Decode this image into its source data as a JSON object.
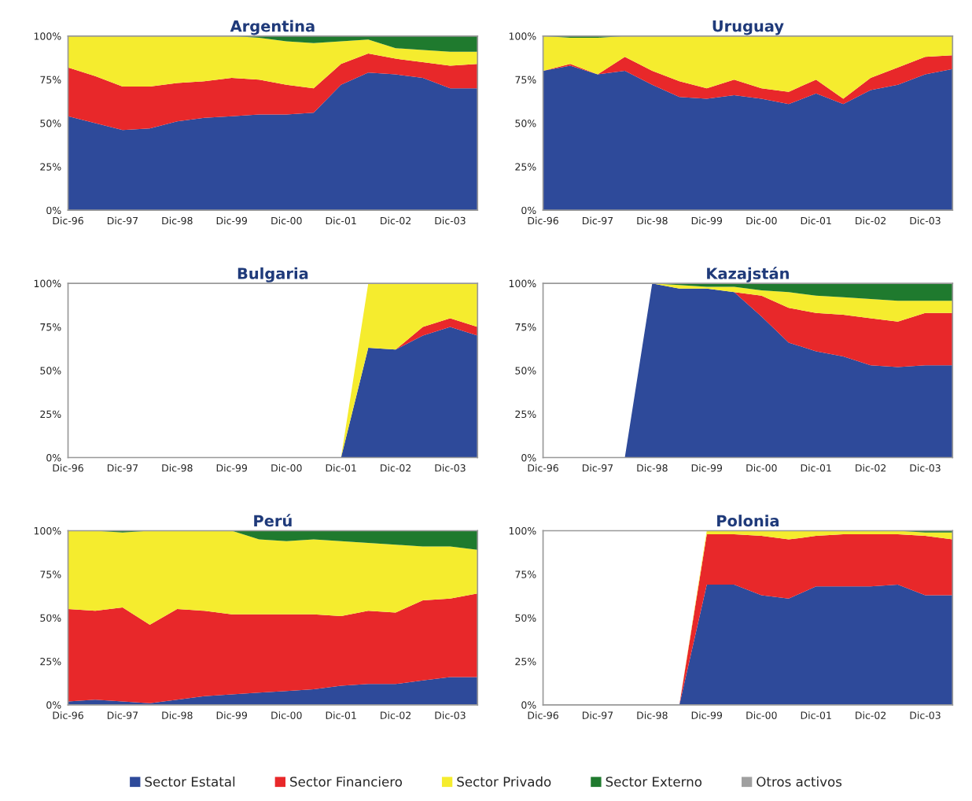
{
  "chart_data": [
    {
      "type": "area",
      "stacked": true,
      "title": "Argentina",
      "x": [
        "1996-12",
        "1997-06",
        "1997-12",
        "1998-06",
        "1998-12",
        "1999-06",
        "1999-12",
        "2000-06",
        "2000-12",
        "2001-06",
        "2001-12",
        "2002-06",
        "2002-12",
        "2003-06",
        "2003-12",
        "2004-06"
      ],
      "xlim": [
        "1996-12",
        "2004-06"
      ],
      "xticks": [
        {
          "value": "1996-12",
          "label": "Dic-96"
        },
        {
          "value": "1997-12",
          "label": "Dic-97"
        },
        {
          "value": "1998-12",
          "label": "Dic-98"
        },
        {
          "value": "1999-12",
          "label": "Dic-99"
        },
        {
          "value": "2000-12",
          "label": "Dic-00"
        },
        {
          "value": "2001-12",
          "label": "Dic-01"
        },
        {
          "value": "2002-12",
          "label": "Dic-02"
        },
        {
          "value": "2003-12",
          "label": "Dic-03"
        }
      ],
      "ylim": [
        0,
        100
      ],
      "yticks": [
        {
          "value": 0,
          "label": "0%"
        },
        {
          "value": 25,
          "label": "25%"
        },
        {
          "value": 50,
          "label": "50%"
        },
        {
          "value": 75,
          "label": "75%"
        },
        {
          "value": 100,
          "label": "100%"
        }
      ],
      "series": [
        {
          "color": "#2e4a9a",
          "values": [
            54,
            50,
            46,
            47,
            51,
            53,
            54,
            55,
            55,
            56,
            72,
            79,
            78,
            76,
            70,
            70
          ]
        },
        {
          "color": "#e8282a",
          "values": [
            28,
            27,
            25,
            24,
            22,
            21,
            22,
            20,
            17,
            14,
            12,
            11,
            9,
            9,
            13,
            14
          ]
        },
        {
          "color": "#f5ec2e",
          "values": [
            18,
            23,
            29,
            29,
            27,
            26,
            24,
            24,
            25,
            26,
            13,
            8,
            6,
            7,
            8,
            7
          ]
        },
        {
          "color": "#1f7a2e",
          "values": [
            0,
            0,
            0,
            0,
            0,
            0,
            0,
            1,
            3,
            4,
            3,
            2,
            7,
            8,
            9,
            9
          ]
        }
      ]
    },
    {
      "type": "area",
      "stacked": true,
      "title": "Uruguay",
      "x": [
        "1996-12",
        "1997-06",
        "1997-12",
        "1998-06",
        "1998-12",
        "1999-06",
        "1999-12",
        "2000-06",
        "2000-12",
        "2001-06",
        "2001-12",
        "2002-06",
        "2002-12",
        "2003-06",
        "2003-12",
        "2004-06"
      ],
      "xlim": [
        "1996-12",
        "2004-06"
      ],
      "xticks": [
        {
          "value": "1996-12",
          "label": "Dic-96"
        },
        {
          "value": "1997-12",
          "label": "Dic-97"
        },
        {
          "value": "1998-12",
          "label": "Dic-98"
        },
        {
          "value": "1999-12",
          "label": "Dic-99"
        },
        {
          "value": "2000-12",
          "label": "Dic-00"
        },
        {
          "value": "2001-12",
          "label": "Dic-01"
        },
        {
          "value": "2002-12",
          "label": "Dic-02"
        },
        {
          "value": "2003-12",
          "label": "Dic-03"
        }
      ],
      "ylim": [
        0,
        100
      ],
      "yticks": [
        {
          "value": 0,
          "label": "0%"
        },
        {
          "value": 25,
          "label": "25%"
        },
        {
          "value": 50,
          "label": "50%"
        },
        {
          "value": 75,
          "label": "75%"
        },
        {
          "value": 100,
          "label": "100%"
        }
      ],
      "series": [
        {
          "color": "#2e4a9a",
          "values": [
            80,
            83,
            78,
            80,
            72,
            65,
            64,
            66,
            64,
            61,
            67,
            61,
            69,
            72,
            78,
            81
          ]
        },
        {
          "color": "#e8282a",
          "values": [
            0,
            1,
            0,
            8,
            8,
            9,
            6,
            9,
            6,
            7,
            8,
            3,
            7,
            10,
            10,
            8
          ]
        },
        {
          "color": "#f5ec2e",
          "values": [
            20,
            15,
            21,
            12,
            20,
            26,
            30,
            25,
            30,
            32,
            25,
            36,
            24,
            18,
            12,
            11
          ]
        },
        {
          "color": "#1f7a2e",
          "values": [
            0,
            1,
            1,
            0,
            0,
            0,
            0,
            0,
            0,
            0,
            0,
            0,
            0,
            0,
            0,
            0
          ]
        }
      ]
    },
    {
      "type": "area",
      "stacked": true,
      "title": "Bulgaria",
      "x": [
        "1996-12",
        "1997-06",
        "1997-12",
        "1998-06",
        "1998-12",
        "1999-06",
        "1999-12",
        "2000-06",
        "2000-12",
        "2001-06",
        "2001-12",
        "2002-06",
        "2002-12",
        "2003-06",
        "2003-12",
        "2004-06"
      ],
      "xlim": [
        "1996-12",
        "2004-06"
      ],
      "xticks": [
        {
          "value": "1996-12",
          "label": "Dic-96"
        },
        {
          "value": "1997-12",
          "label": "Dic-97"
        },
        {
          "value": "1998-12",
          "label": "Dic-98"
        },
        {
          "value": "1999-12",
          "label": "Dic-99"
        },
        {
          "value": "2000-12",
          "label": "Dic-00"
        },
        {
          "value": "2001-12",
          "label": "Dic-01"
        },
        {
          "value": "2002-12",
          "label": "Dic-02"
        },
        {
          "value": "2003-12",
          "label": "Dic-03"
        }
      ],
      "ylim": [
        0,
        100
      ],
      "yticks": [
        {
          "value": 0,
          "label": "0%"
        },
        {
          "value": 25,
          "label": "25%"
        },
        {
          "value": 50,
          "label": "50%"
        },
        {
          "value": 75,
          "label": "75%"
        },
        {
          "value": 100,
          "label": "100%"
        }
      ],
      "series": [
        {
          "color": "#2e4a9a",
          "values": [
            0,
            0,
            0,
            0,
            0,
            0,
            0,
            0,
            0,
            0,
            0,
            63,
            62,
            70,
            75,
            70
          ]
        },
        {
          "color": "#e8282a",
          "values": [
            null,
            null,
            null,
            null,
            null,
            null,
            null,
            null,
            null,
            null,
            null,
            null,
            0,
            5,
            5,
            5
          ]
        },
        {
          "color": "#f5ec2e",
          "values": [
            null,
            null,
            null,
            null,
            null,
            null,
            null,
            null,
            null,
            null,
            0,
            37,
            38,
            25,
            20,
            25
          ]
        }
      ]
    },
    {
      "type": "area",
      "stacked": true,
      "title": "Kazajstán",
      "x": [
        "1996-12",
        "1997-06",
        "1997-12",
        "1998-06",
        "1998-12",
        "1999-06",
        "1999-12",
        "2000-06",
        "2000-12",
        "2001-06",
        "2001-12",
        "2002-06",
        "2002-12",
        "2003-06",
        "2003-12",
        "2004-06"
      ],
      "xlim": [
        "1996-12",
        "2004-06"
      ],
      "xticks": [
        {
          "value": "1996-12",
          "label": "Dic-96"
        },
        {
          "value": "1997-12",
          "label": "Dic-97"
        },
        {
          "value": "1998-12",
          "label": "Dic-98"
        },
        {
          "value": "1999-12",
          "label": "Dic-99"
        },
        {
          "value": "2000-12",
          "label": "Dic-00"
        },
        {
          "value": "2001-12",
          "label": "Dic-01"
        },
        {
          "value": "2002-12",
          "label": "Dic-02"
        },
        {
          "value": "2003-12",
          "label": "Dic-03"
        }
      ],
      "ylim": [
        0,
        100
      ],
      "yticks": [
        {
          "value": 0,
          "label": "0%"
        },
        {
          "value": 25,
          "label": "25%"
        },
        {
          "value": 50,
          "label": "50%"
        },
        {
          "value": 75,
          "label": "75%"
        },
        {
          "value": 100,
          "label": "100%"
        }
      ],
      "series": [
        {
          "color": "#2e4a9a",
          "values": [
            0,
            0,
            0,
            0,
            100,
            97,
            97,
            95,
            81,
            66,
            61,
            58,
            53,
            52,
            53,
            53
          ]
        },
        {
          "color": "#e8282a",
          "values": [
            null,
            null,
            null,
            null,
            null,
            null,
            null,
            0,
            12,
            20,
            22,
            24,
            27,
            26,
            30,
            30
          ]
        },
        {
          "color": "#f5ec2e",
          "values": [
            null,
            null,
            null,
            null,
            0,
            2,
            1,
            3,
            3,
            9,
            10,
            10,
            11,
            12,
            7,
            7
          ]
        },
        {
          "color": "#1f7a2e",
          "values": [
            null,
            null,
            null,
            null,
            0,
            1,
            2,
            2,
            4,
            5,
            7,
            8,
            9,
            10,
            10,
            10
          ]
        }
      ]
    },
    {
      "type": "area",
      "stacked": true,
      "title": "Perú",
      "x": [
        "1996-12",
        "1997-06",
        "1997-12",
        "1998-06",
        "1998-12",
        "1999-06",
        "1999-12",
        "2000-06",
        "2000-12",
        "2001-06",
        "2001-12",
        "2002-06",
        "2002-12",
        "2003-06",
        "2003-12",
        "2004-06"
      ],
      "xlim": [
        "1996-12",
        "2004-06"
      ],
      "xticks": [
        {
          "value": "1996-12",
          "label": "Dic-96"
        },
        {
          "value": "1997-12",
          "label": "Dic-97"
        },
        {
          "value": "1998-12",
          "label": "Dic-98"
        },
        {
          "value": "1999-12",
          "label": "Dic-99"
        },
        {
          "value": "2000-12",
          "label": "Dic-00"
        },
        {
          "value": "2001-12",
          "label": "Dic-01"
        },
        {
          "value": "2002-12",
          "label": "Dic-02"
        },
        {
          "value": "2003-12",
          "label": "Dic-03"
        }
      ],
      "ylim": [
        0,
        100
      ],
      "yticks": [
        {
          "value": 0,
          "label": "0%"
        },
        {
          "value": 25,
          "label": "25%"
        },
        {
          "value": 50,
          "label": "50%"
        },
        {
          "value": 75,
          "label": "75%"
        },
        {
          "value": 100,
          "label": "100%"
        }
      ],
      "series": [
        {
          "color": "#2e4a9a",
          "values": [
            2,
            3,
            2,
            1,
            3,
            5,
            6,
            7,
            8,
            9,
            11,
            12,
            12,
            14,
            16,
            16
          ]
        },
        {
          "color": "#e8282a",
          "values": [
            53,
            51,
            54,
            45,
            52,
            49,
            46,
            45,
            44,
            43,
            40,
            42,
            41,
            46,
            45,
            48
          ]
        },
        {
          "color": "#f5ec2e",
          "values": [
            45,
            46,
            43,
            54,
            45,
            46,
            48,
            43,
            42,
            43,
            43,
            39,
            39,
            31,
            30,
            25
          ]
        },
        {
          "color": "#1f7a2e",
          "values": [
            0,
            0,
            1,
            0,
            0,
            0,
            0,
            5,
            6,
            5,
            6,
            7,
            8,
            9,
            9,
            11
          ]
        }
      ]
    },
    {
      "type": "area",
      "stacked": true,
      "title": "Polonia",
      "legend": "bottom",
      "x": [
        "1996-12",
        "1997-06",
        "1997-12",
        "1998-06",
        "1998-12",
        "1999-06",
        "1999-12",
        "2000-06",
        "2000-12",
        "2001-06",
        "2001-12",
        "2002-06",
        "2002-12",
        "2003-06",
        "2003-12",
        "2004-06"
      ],
      "xlim": [
        "1996-12",
        "2004-06"
      ],
      "xticks": [
        {
          "value": "1996-12",
          "label": "Dic-96"
        },
        {
          "value": "1997-12",
          "label": "Dic-97"
        },
        {
          "value": "1998-12",
          "label": "Dic-98"
        },
        {
          "value": "1999-12",
          "label": "Dic-99"
        },
        {
          "value": "2000-12",
          "label": "Dic-00"
        },
        {
          "value": "2001-12",
          "label": "Dic-01"
        },
        {
          "value": "2002-12",
          "label": "Dic-02"
        },
        {
          "value": "2003-12",
          "label": "Dic-03"
        }
      ],
      "ylim": [
        0,
        100
      ],
      "yticks": [
        {
          "value": 0,
          "label": "0%"
        },
        {
          "value": 25,
          "label": "25%"
        },
        {
          "value": 50,
          "label": "50%"
        },
        {
          "value": 75,
          "label": "75%"
        },
        {
          "value": 100,
          "label": "100%"
        }
      ],
      "series": [
        {
          "name": "Sector Estatal",
          "color": "#2e4a9a",
          "values": [
            0,
            0,
            0,
            0,
            0,
            0,
            69,
            69,
            63,
            61,
            68,
            68,
            68,
            69,
            63,
            63
          ]
        },
        {
          "name": "Sector Financiero",
          "color": "#e8282a",
          "values": [
            null,
            null,
            null,
            null,
            null,
            0,
            29,
            29,
            34,
            34,
            29,
            30,
            30,
            29,
            34,
            32
          ]
        },
        {
          "name": "Sector Privado",
          "color": "#f5ec2e",
          "values": [
            null,
            null,
            null,
            null,
            null,
            0,
            2,
            2,
            3,
            5,
            3,
            2,
            2,
            2,
            2,
            4
          ]
        },
        {
          "name": "Sector Externo",
          "color": "#1f7a2e",
          "values": [
            null,
            null,
            null,
            null,
            null,
            null,
            null,
            null,
            null,
            null,
            null,
            null,
            null,
            0,
            1,
            1
          ]
        },
        {
          "name": "Otros activos",
          "color": "#a0a0a0",
          "values": [
            null,
            null,
            null,
            null,
            null,
            null,
            null,
            null,
            null,
            null,
            null,
            null,
            null,
            null,
            null,
            null
          ]
        }
      ]
    }
  ]
}
